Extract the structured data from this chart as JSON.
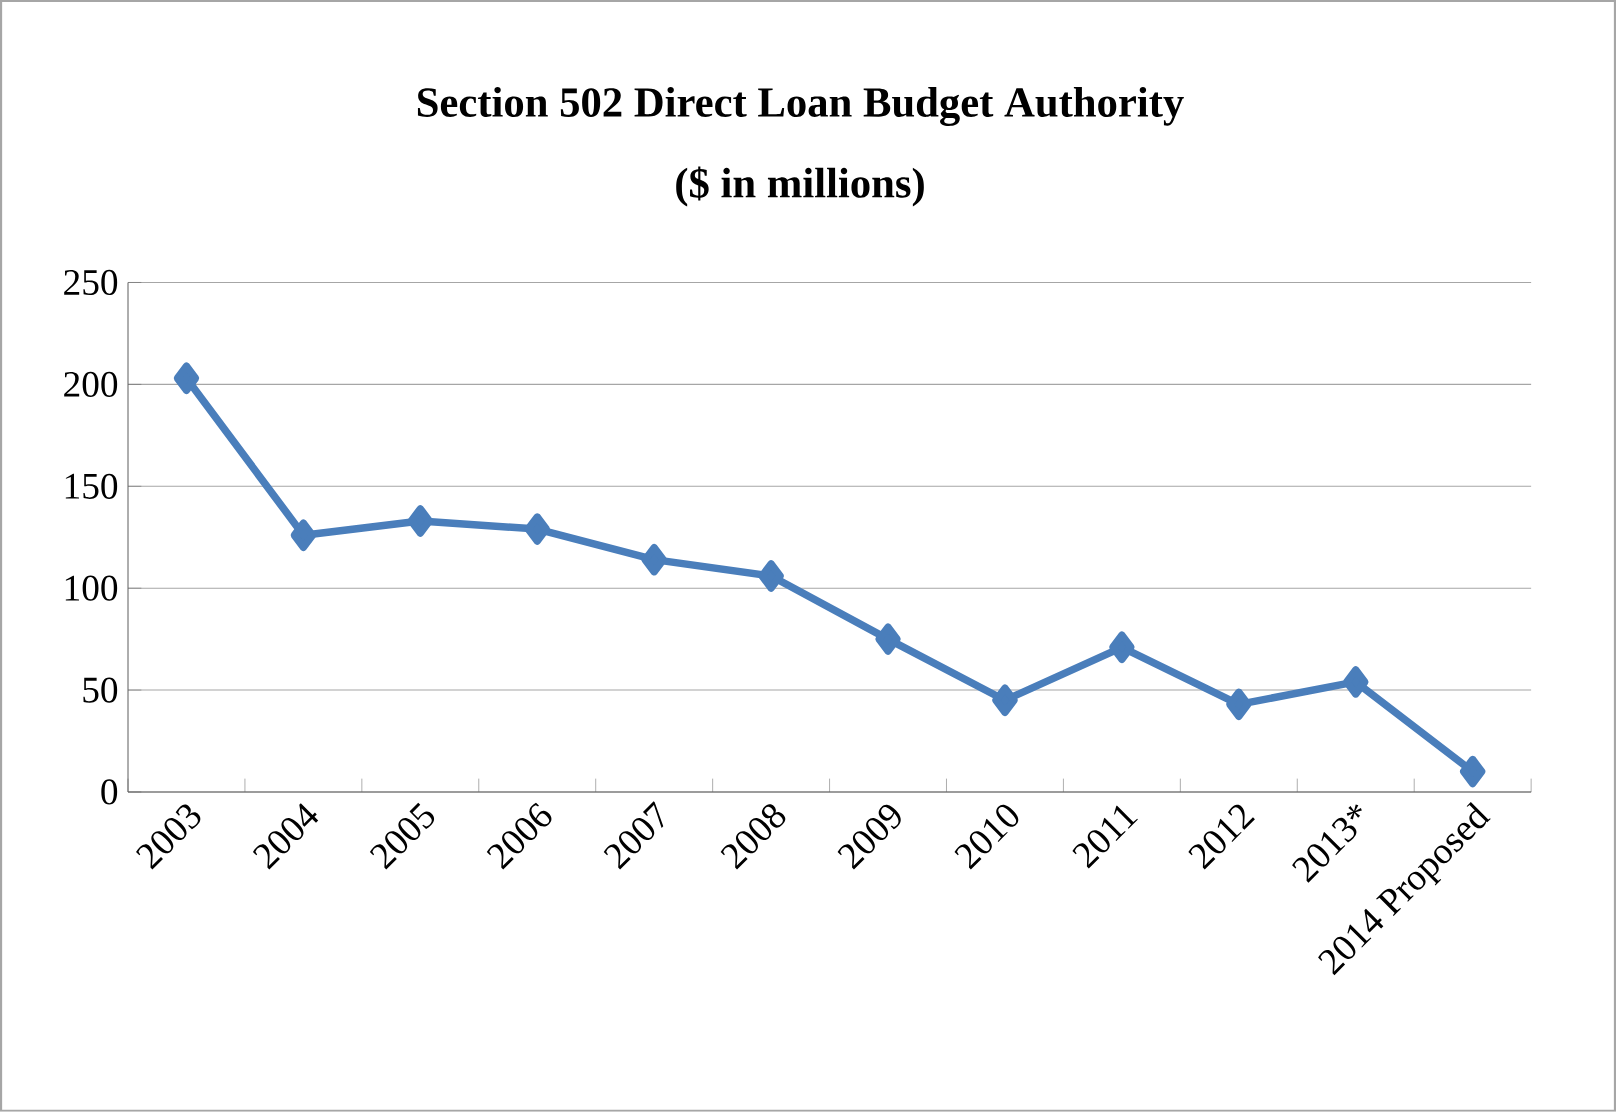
{
  "chart_data": {
    "type": "line",
    "title": "Section 502 Direct Loan Budget Authority",
    "subtitle": "($ in millions)",
    "categories": [
      "2003",
      "2004",
      "2005",
      "2006",
      "2007",
      "2008",
      "2009",
      "2010",
      "2011",
      "2012",
      "2013*",
      "2014 Proposed"
    ],
    "series": [
      {
        "color": "#4a7ebb",
        "values": [
          203,
          126,
          133,
          129,
          114,
          106,
          75,
          45,
          71,
          43,
          54,
          10
        ]
      }
    ],
    "ylim": [
      0,
      250
    ],
    "yticks": [
      0,
      50,
      100,
      150,
      200,
      250
    ],
    "grid": "y",
    "marker": "diamond",
    "line_style": "solid"
  }
}
